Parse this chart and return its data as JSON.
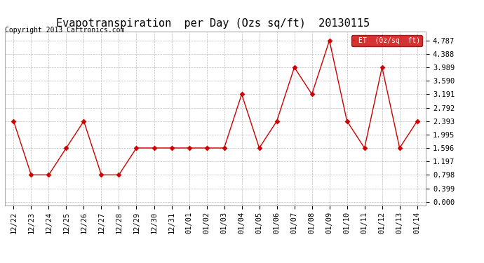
{
  "title": "Evapotranspiration  per Day (Ozs sq/ft)  20130115",
  "copyright": "Copyright 2013 Cartronics.com",
  "legend_label": "ET  (0z/sq  ft)",
  "x_labels": [
    "12/22",
    "12/23",
    "12/24",
    "12/25",
    "12/26",
    "12/27",
    "12/28",
    "12/29",
    "12/30",
    "12/31",
    "01/01",
    "01/02",
    "01/03",
    "01/04",
    "01/05",
    "01/06",
    "01/07",
    "01/08",
    "01/09",
    "01/10",
    "01/11",
    "01/12",
    "01/13",
    "01/14"
  ],
  "y_values": [
    2.393,
    0.798,
    0.798,
    1.596,
    2.393,
    0.798,
    0.798,
    1.596,
    1.596,
    1.596,
    1.596,
    1.596,
    1.596,
    3.191,
    1.596,
    2.393,
    3.989,
    3.191,
    4.787,
    2.393,
    1.596,
    3.989,
    1.596,
    2.393
  ],
  "y_ticks": [
    0.0,
    0.399,
    0.798,
    1.197,
    1.596,
    1.995,
    2.393,
    2.792,
    3.191,
    3.59,
    3.989,
    4.388,
    4.787
  ],
  "line_color": "#cc0000",
  "marker_color": "#cc0000",
  "background_color": "#ffffff",
  "grid_color": "#bbbbbb",
  "legend_bg": "#cc0000",
  "legend_text_color": "#ffffff",
  "title_fontsize": 11,
  "tick_fontsize": 7.5,
  "copyright_fontsize": 7
}
